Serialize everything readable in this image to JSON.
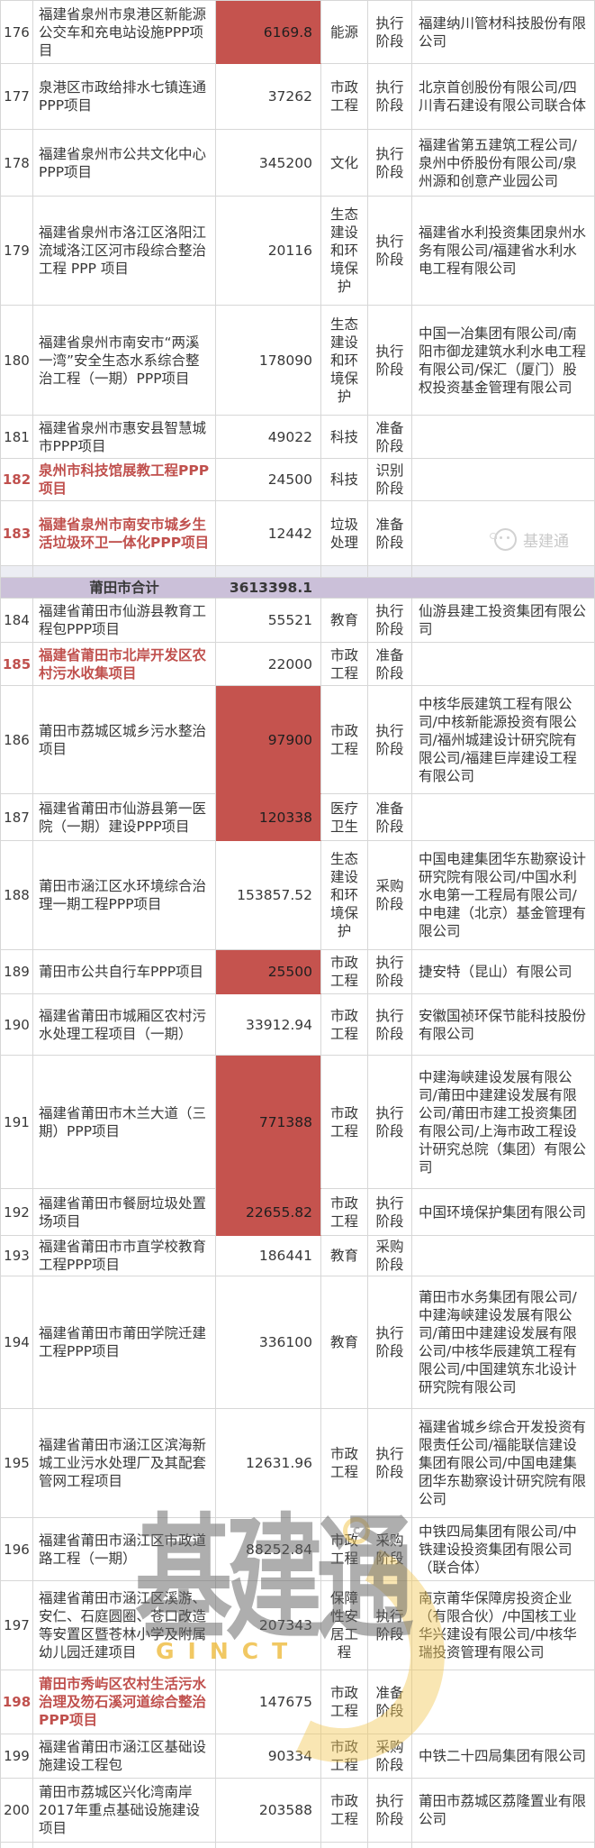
{
  "table": {
    "quanzhou_rows": [
      {
        "no": "176",
        "name": "福建省泉州市泉港区新能源公交车和充电站设施PPP项目",
        "amount": "6169.8",
        "industry": "能源",
        "stage": "执行阶段",
        "investor": "福建纳川管材科技股份有限公司",
        "amount_highlight": true,
        "name_red": false
      },
      {
        "no": "177",
        "name": "泉港区市政给排水七镇连通PPP项目",
        "amount": "37262",
        "industry": "市政工程",
        "stage": "执行阶段",
        "investor": "北京首创股份有限公司/四川青石建设有限公司联合体",
        "amount_highlight": false,
        "name_red": false
      },
      {
        "no": "178",
        "name": "福建省泉州市公共文化中心PPP项目",
        "amount": "345200",
        "industry": "文化",
        "stage": "执行阶段",
        "investor": "福建省第五建筑工程公司/泉州中侨股份有限公司/泉州源和创意产业园公司",
        "amount_highlight": false,
        "name_red": false
      },
      {
        "no": "179",
        "name": "福建省泉州市洛江区洛阳江流域洛江区河市段综合整治工程 PPP 项目",
        "amount": "20116",
        "industry": "生态建设和环境保护",
        "stage": "执行阶段",
        "investor": "福建省水利投资集团泉州水务有限公司/福建省水利水电工程有限公司",
        "amount_highlight": false,
        "name_red": false
      },
      {
        "no": "180",
        "name": "福建省泉州市南安市“两溪一湾”安全生态水系综合整治工程（一期）PPP项目",
        "amount": "178090",
        "industry": "生态建设和环境保护",
        "stage": "执行阶段",
        "investor": "中国一冶集团有限公司/南阳市御龙建筑水利水电工程有限公司/保汇（厦门）股权投资基金管理有限公司",
        "amount_highlight": false,
        "name_red": false
      },
      {
        "no": "181",
        "name": "福建省泉州市惠安县智慧城市PPP项目",
        "amount": "49022",
        "industry": "科技",
        "stage": "准备阶段",
        "investor": "",
        "amount_highlight": false,
        "name_red": false
      },
      {
        "no": "182",
        "name": "泉州市科技馆展教工程PPP项目",
        "amount": "24500",
        "industry": "科技",
        "stage": "识别阶段",
        "investor": "",
        "amount_highlight": false,
        "name_red": true
      },
      {
        "no": "183",
        "name": "福建省泉州市南安市城乡生活垃圾环卫一体化PPP项目",
        "amount": "12442",
        "industry": "垃圾处理",
        "stage": "准备阶段",
        "investor": "",
        "amount_highlight": false,
        "name_red": true
      }
    ],
    "summary": {
      "label": "莆田市合计",
      "total": "3613398.1"
    },
    "putian_rows": [
      {
        "no": "184",
        "name": "福建省莆田市仙游县教育工程包PPP项目",
        "amount": "55521",
        "industry": "教育",
        "stage": "执行阶段",
        "investor": "仙游县建工投资集团有限公司",
        "amount_highlight": false,
        "name_red": false
      },
      {
        "no": "185",
        "name": "福建省莆田市北岸开发区农村污水收集项目",
        "amount": "22000",
        "industry": "市政工程",
        "stage": "准备阶段",
        "investor": "",
        "amount_highlight": false,
        "name_red": true
      },
      {
        "no": "186",
        "name": "莆田市荔城区城乡污水整治项目",
        "amount": "97900",
        "industry": "市政工程",
        "stage": "执行阶段",
        "investor": "中核华辰建筑工程有限公司/中核新能源投资有限公司/福州城建设计研究院有限公司/福建巨岸建设工程有限公司",
        "amount_highlight": true,
        "name_red": false
      },
      {
        "no": "187",
        "name": "福建省莆田市仙游县第一医院（一期）建设PPP项目",
        "amount": "120338",
        "industry": "医疗卫生",
        "stage": "准备阶段",
        "investor": "",
        "amount_highlight": true,
        "name_red": false
      },
      {
        "no": "188",
        "name": "莆田市涵江区水环境综合治理一期工程PPP项目",
        "amount": "153857.52",
        "industry": "生态建设和环境保护",
        "stage": "采购阶段",
        "investor": "中国电建集团华东勘察设计研究院有限公司/中国水利水电第一工程局有限公司/中电建（北京）基金管理有限公司",
        "amount_highlight": false,
        "name_red": false
      },
      {
        "no": "189",
        "name": "莆田市公共自行车PPP项目",
        "amount": "25500",
        "industry": "市政工程",
        "stage": "执行阶段",
        "investor": "捷安特（昆山）有限公司",
        "amount_highlight": true,
        "name_red": false
      },
      {
        "no": "190",
        "name": "福建省莆田市城厢区农村污水处理工程项目（一期）",
        "amount": "33912.94",
        "industry": "市政工程",
        "stage": "执行阶段",
        "investor": "安徽国祯环保节能科技股份有限公司",
        "amount_highlight": false,
        "name_red": false
      },
      {
        "no": "191",
        "name": "福建省莆田市木兰大道（三期）PPP项目",
        "amount": "771388",
        "industry": "市政工程",
        "stage": "执行阶段",
        "investor": "中建海峡建设发展有限公司/莆田中建建设发展有限公司/莆田市建工投资集团有限公司/上海市政工程设计研究总院（集团）有限公司",
        "amount_highlight": true,
        "name_red": false
      },
      {
        "no": "192",
        "name": "福建省莆田市餐厨垃圾处置场项目",
        "amount": "22655.82",
        "industry": "市政工程",
        "stage": "执行阶段",
        "investor": "中国环境保护集团有限公司",
        "amount_highlight": true,
        "name_red": false
      },
      {
        "no": "193",
        "name": "福建省莆田市市直学校教育工程PPP项目",
        "amount": "186441",
        "industry": "教育",
        "stage": "采购阶段",
        "investor": "",
        "amount_highlight": false,
        "name_red": false
      },
      {
        "no": "194",
        "name": "福建省莆田市莆田学院迁建工程PPP项目",
        "amount": "336100",
        "industry": "教育",
        "stage": "执行阶段",
        "investor": "莆田市水务集团有限公司/中建海峡建设发展有限公司/莆田中建建设发展有限公司/中核华辰建筑工程有限公司/中国建筑东北设计研究院有限公司",
        "amount_highlight": false,
        "name_red": false
      },
      {
        "no": "195",
        "name": "福建省莆田市涵江区滨海新城工业污水处理厂及其配套管网工程项目",
        "amount": "12631.96",
        "industry": "市政工程",
        "stage": "执行阶段",
        "investor": "福建省城乡综合开发投资有限责任公司/福能联信建设集团有限公司/中国电建集团华东勘察设计研究院有限公司",
        "amount_highlight": false,
        "name_red": false
      },
      {
        "no": "196",
        "name": "福建省莆田市涵江区市政道路工程（一期）",
        "amount": "88252.84",
        "industry": "市政工程",
        "stage": "采购阶段",
        "investor": "中铁四局集团有限公司/中铁建设投资集团有限公司（联合体）",
        "amount_highlight": false,
        "name_red": false
      },
      {
        "no": "197",
        "name": "福建省莆田市涵江区溪游、安仁、石庭圆圈、苍口改造等安置区暨苍林小学及附属幼儿园迁建项目",
        "amount": "207343",
        "industry": "保障性安居工程",
        "stage": "执行阶段",
        "investor": "南京莆华保障房投资企业（有限合伙）/中国核工业华兴建设有限公司/中核华瑞投资管理有限公司",
        "amount_highlight": false,
        "name_red": false
      },
      {
        "no": "198",
        "name": "莆田市秀屿区农村生活污水治理及笏石溪河道综合整治PPP项目",
        "amount": "147675",
        "industry": "市政工程",
        "stage": "准备阶段",
        "investor": "",
        "amount_highlight": false,
        "name_red": true
      },
      {
        "no": "199",
        "name": "福建省莆田市涵江区基础设施建设工程包",
        "amount": "90334",
        "industry": "市政工程",
        "stage": "采购阶段",
        "investor": "中铁二十四局集团有限公司",
        "amount_highlight": false,
        "name_red": false
      },
      {
        "no": "200",
        "name": "莆田市荔城区兴化湾南岸2017年重点基础设施建设项目",
        "amount": "203588",
        "industry": "市政工程",
        "stage": "执行阶段",
        "investor": "莆田市荔城区荔隆置业有限公司",
        "amount_highlight": false,
        "name_red": false
      }
    ]
  },
  "watermark": {
    "small_brand": "基建通",
    "big_brand": "基建通",
    "big_brand_sub": "GINCT",
    "copyright_mark": "c"
  },
  "colors": {
    "highlight_cell": "#c5534e",
    "red_text": "#c0504d",
    "summary_bg": "#cbc0d9",
    "separator_bg": "#ecedf3",
    "grid_line": "#d7d7d7"
  }
}
